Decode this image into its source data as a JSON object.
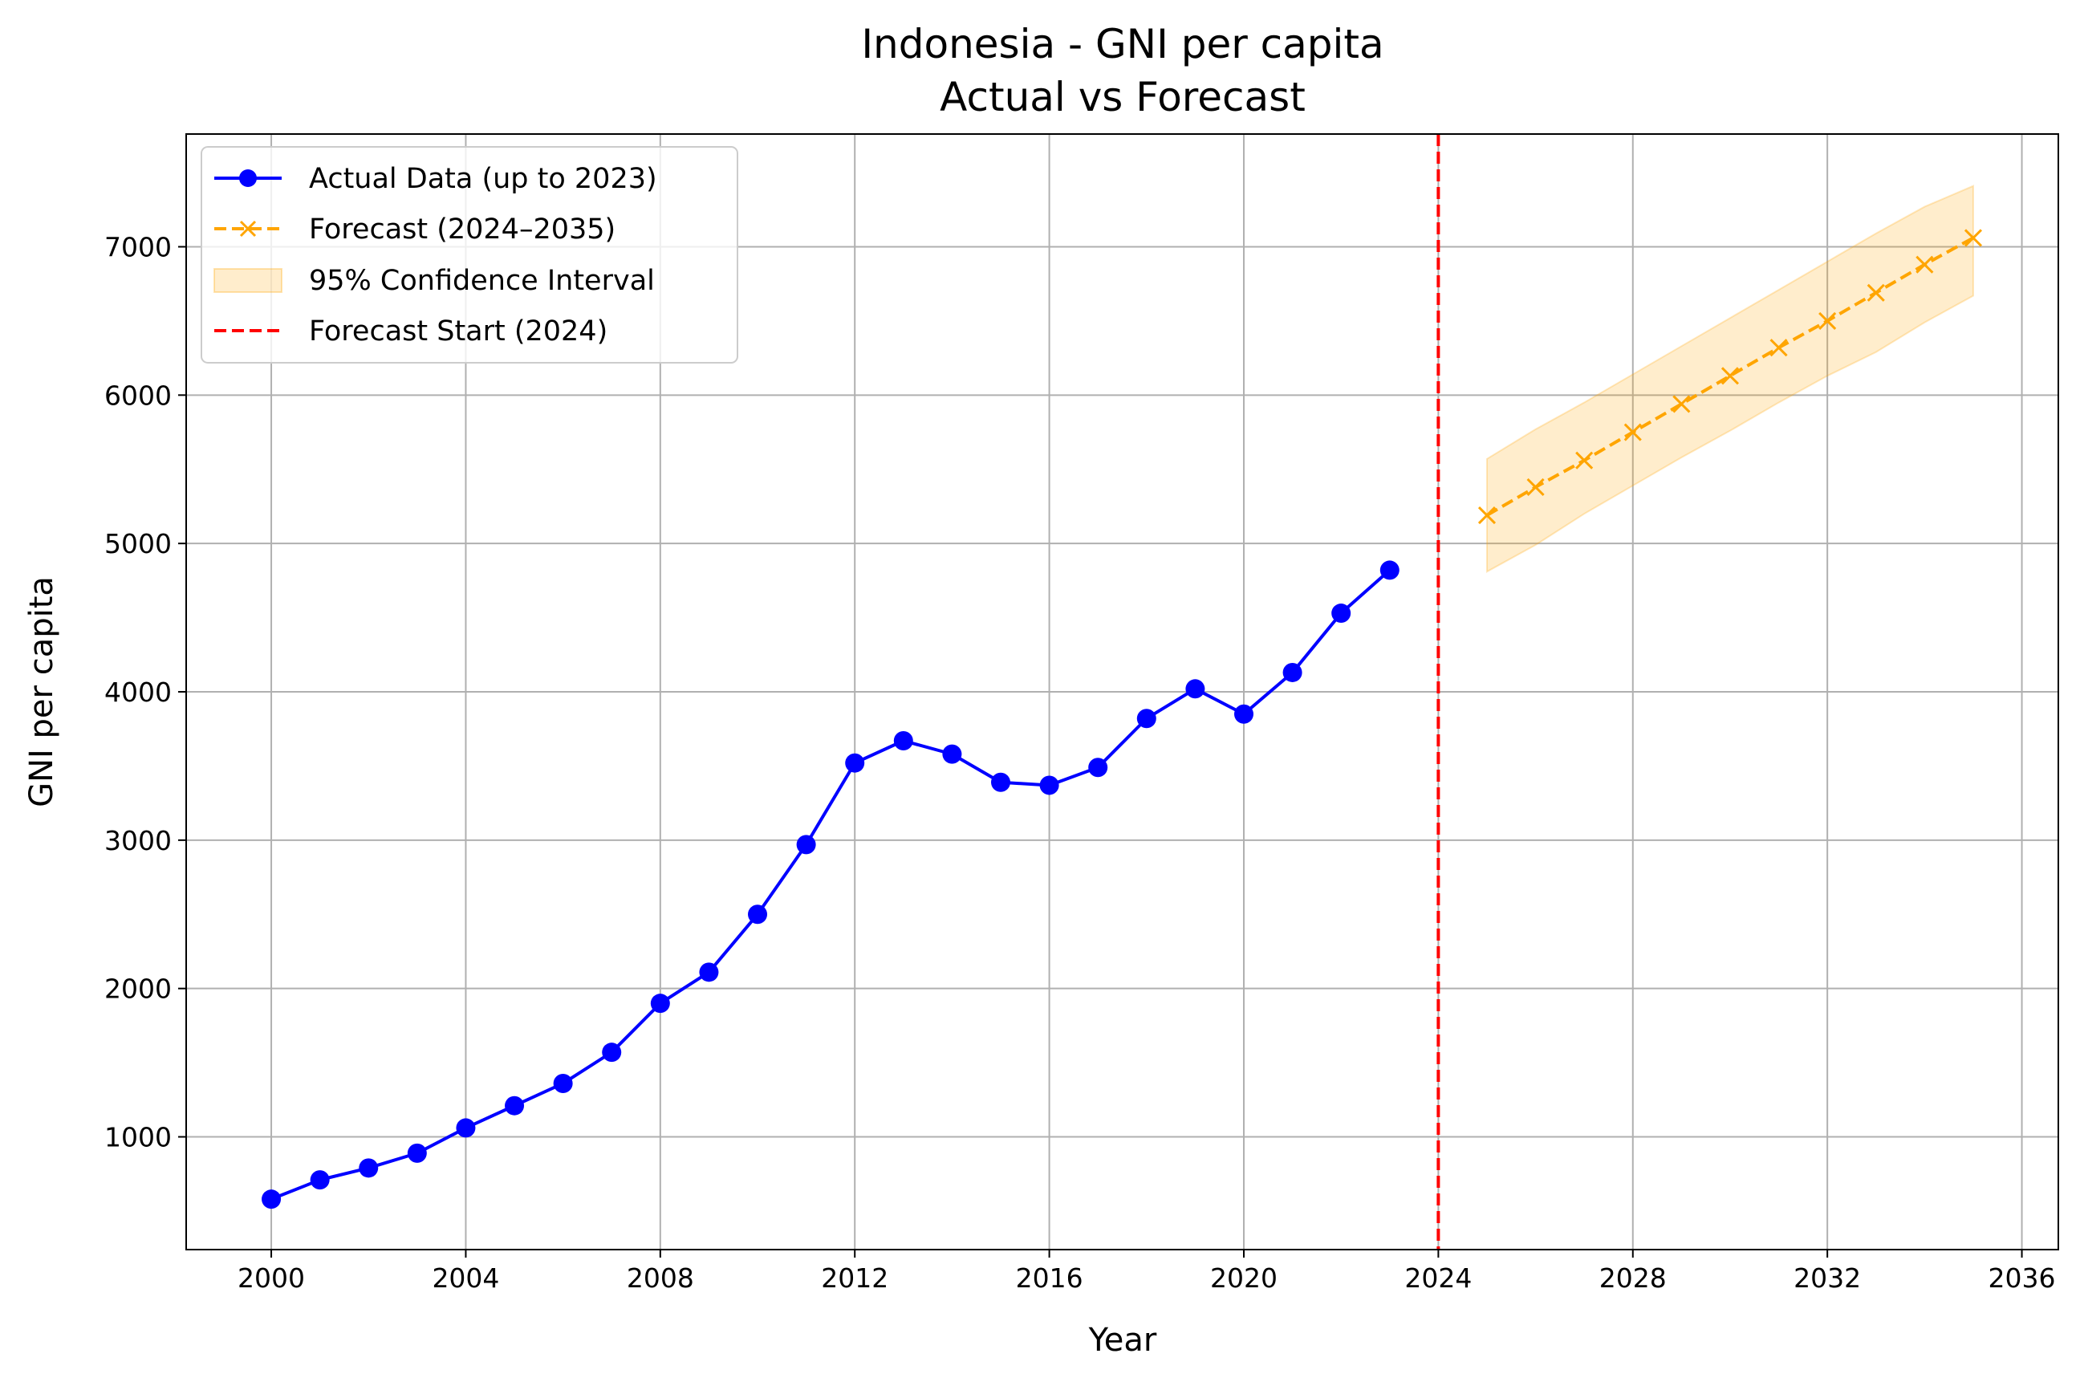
{
  "chart_data": {
    "type": "line",
    "title": "Indonesia - GNI per capita",
    "subtitle": "Actual vs Forecast",
    "xlabel": "Year",
    "ylabel": "GNI per capita",
    "xlim": [
      1998.25,
      2036.75
    ],
    "ylim": [
      240,
      7760
    ],
    "x_ticks": [
      2000,
      2004,
      2008,
      2012,
      2016,
      2020,
      2024,
      2028,
      2032,
      2036
    ],
    "y_ticks": [
      1000,
      2000,
      3000,
      4000,
      5000,
      6000,
      7000
    ],
    "grid": true,
    "legend_position": "top-left",
    "series": [
      {
        "name": "Actual Data (up to 2023)",
        "color": "#0000ff",
        "style": "solid",
        "marker": "circle",
        "x": [
          2000,
          2001,
          2002,
          2003,
          2004,
          2005,
          2006,
          2007,
          2008,
          2009,
          2010,
          2011,
          2012,
          2013,
          2014,
          2015,
          2016,
          2017,
          2018,
          2019,
          2020,
          2021,
          2022,
          2023
        ],
        "values": [
          580,
          710,
          790,
          890,
          1060,
          1210,
          1360,
          1570,
          1900,
          2110,
          2500,
          2970,
          3520,
          3670,
          3580,
          3390,
          3370,
          3490,
          3820,
          4020,
          3850,
          4130,
          4530,
          4820
        ]
      },
      {
        "name": "Forecast (2024–2035)",
        "color": "#ffa500",
        "style": "dashed",
        "marker": "x",
        "x": [
          2025,
          2026,
          2027,
          2028,
          2029,
          2030,
          2031,
          2032,
          2033,
          2034,
          2035
        ],
        "values": [
          5190,
          5380,
          5560,
          5750,
          5940,
          6130,
          6320,
          6500,
          6690,
          6880,
          7060
        ]
      }
    ],
    "confidence_interval": {
      "name": "95% Confidence Interval",
      "color": "#ffa500",
      "x": [
        2025,
        2026,
        2027,
        2028,
        2029,
        2030,
        2031,
        2032,
        2033,
        2034,
        2035
      ],
      "lower": [
        4810,
        4990,
        5200,
        5390,
        5580,
        5760,
        5950,
        6130,
        6290,
        6490,
        6670
      ],
      "upper": [
        5570,
        5770,
        5950,
        6140,
        6330,
        6520,
        6710,
        6900,
        7090,
        7270,
        7410
      ]
    },
    "vertical_line": {
      "name": "Forecast Start (2024)",
      "color": "#ff0000",
      "style": "dashed",
      "x": 2024
    }
  }
}
